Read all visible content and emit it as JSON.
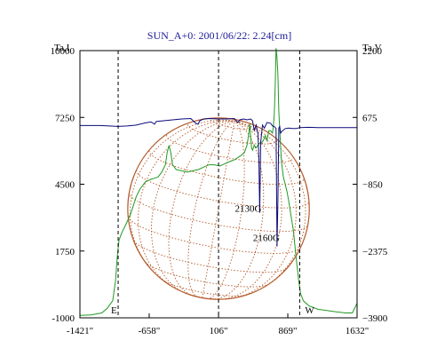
{
  "chart_data": {
    "type": "line",
    "title": "SUN_A+0: 2001/06/22: 2.24[cm]",
    "left_axis": {
      "label": "Ta,I",
      "ticks": [
        10000,
        7250,
        4500,
        1750,
        -1000
      ],
      "ylim": [
        -1000,
        10000
      ]
    },
    "right_axis": {
      "label": "Ta,V",
      "ticks": [
        2200,
        675,
        -850,
        -2375,
        -3900
      ],
      "ylim": [
        -3900,
        2200
      ]
    },
    "x_axis": {
      "ticks": [
        "-1421\"",
        "-658\"",
        "106\"",
        "869\"",
        "1632\""
      ],
      "xlim": [
        -1421,
        1632
      ]
    },
    "markers": [
      {
        "x": -1000,
        "label": "E"
      },
      {
        "x": 106,
        "label": ""
      },
      {
        "x": 1000,
        "label": "W"
      }
    ],
    "annotations": [
      {
        "label": "2130G",
        "x": 560,
        "y": -1600
      },
      {
        "label": "2160G",
        "x": 760,
        "y": -2270
      }
    ],
    "solar_grid": {
      "center_x": 106,
      "radius": 1000,
      "color": "#b45a2a"
    },
    "series": [
      {
        "axis": "left",
        "color": "#229922",
        "x": [
          -1421,
          -1300,
          -1180,
          -1120,
          -1060,
          -1030,
          -1010,
          -990,
          -960,
          -920,
          -860,
          -800,
          -760,
          -700,
          -640,
          -600,
          -560,
          -520,
          -480,
          -460,
          -440,
          -420,
          -400,
          -360,
          -300,
          -240,
          -180,
          -120,
          -60,
          0,
          60,
          120,
          180,
          240,
          280,
          320,
          360,
          390,
          420,
          440,
          450,
          460,
          470,
          480,
          500,
          520,
          540,
          560,
          580,
          600,
          620,
          640,
          660,
          680,
          700,
          710,
          720,
          730,
          740,
          750,
          760,
          770,
          780,
          790,
          800,
          820,
          840,
          860,
          880,
          900,
          930,
          960,
          990,
          1010,
          1040,
          1100,
          1200,
          1300,
          1400,
          1500,
          1580,
          1632
        ],
        "y": [
          -900,
          -880,
          -800,
          -600,
          -300,
          500,
          1500,
          2200,
          2500,
          2800,
          3300,
          4000,
          4300,
          4600,
          4700,
          4750,
          4800,
          5000,
          5300,
          5800,
          6100,
          5800,
          5300,
          5100,
          5050,
          5000,
          5050,
          5100,
          5200,
          5300,
          5300,
          5250,
          5350,
          5450,
          5500,
          5600,
          5700,
          5800,
          6100,
          6600,
          7000,
          6500,
          6000,
          5900,
          6100,
          6000,
          6100,
          6200,
          6200,
          6300,
          6500,
          6300,
          6700,
          6700,
          6600,
          6900,
          7400,
          8500,
          10100,
          9700,
          9000,
          7500,
          6800,
          6000,
          5400,
          4800,
          4500,
          4200,
          3800,
          3300,
          2600,
          1500,
          500,
          0,
          -300,
          -500,
          -650,
          -700,
          -750,
          -800,
          -800,
          -400
        ]
      },
      {
        "axis": "right",
        "color": "#0a0a7a",
        "x": [
          -1421,
          -1200,
          -1100,
          -1000,
          -900,
          -800,
          -700,
          -640,
          -620,
          -600,
          -580,
          -500,
          -400,
          -300,
          -200,
          -150,
          -120,
          -100,
          -60,
          0,
          100,
          200,
          280,
          300,
          320,
          340,
          380,
          420,
          460,
          480,
          500,
          520,
          540,
          550,
          560,
          570,
          590,
          610,
          640,
          680,
          700,
          720,
          740,
          750,
          760,
          770,
          780,
          790,
          800,
          840,
          880,
          920,
          960,
          1000,
          1100,
          1200,
          1300,
          1400,
          1500,
          1632
        ],
        "y": [
          490,
          490,
          480,
          470,
          480,
          500,
          550,
          570,
          550,
          520,
          580,
          600,
          620,
          640,
          650,
          550,
          520,
          600,
          640,
          650,
          640,
          640,
          650,
          600,
          560,
          620,
          640,
          620,
          640,
          600,
          380,
          500,
          300,
          -200,
          -1500,
          100,
          500,
          430,
          560,
          540,
          480,
          470,
          420,
          -2270,
          -1200,
          430,
          470,
          320,
          350,
          420,
          430,
          420,
          420,
          440,
          450,
          440,
          440,
          440,
          440,
          440
        ]
      }
    ]
  }
}
